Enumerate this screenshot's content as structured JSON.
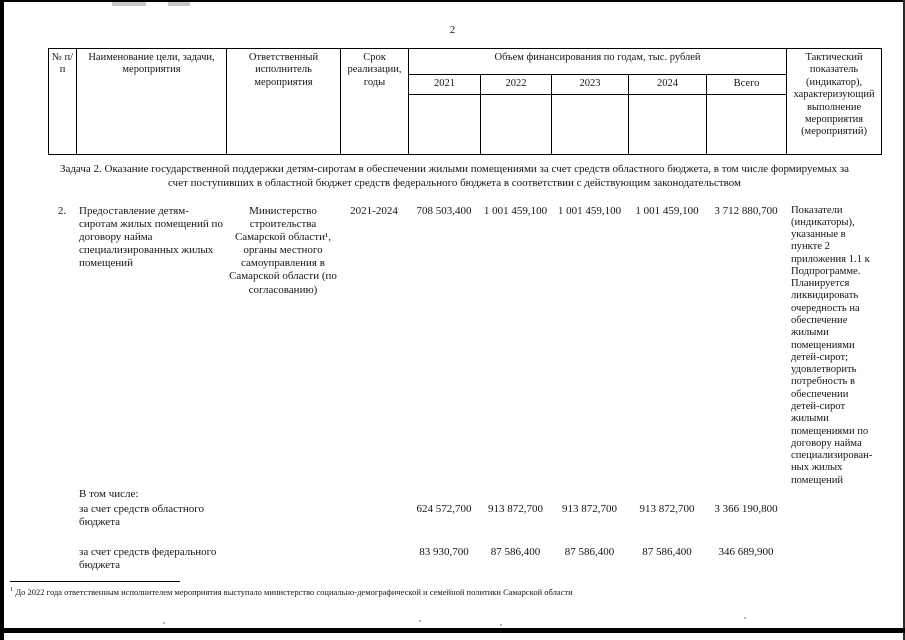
{
  "page": {
    "number": "2"
  },
  "table": {
    "header": {
      "num": "№ п/п",
      "name": "Наименование цели, задачи, мероприятия",
      "executor": "Ответственный исполнитель мероприятия",
      "term": "Срок реализации, годы",
      "financing": "Объем финансирования по годам, тыс. рублей",
      "years": [
        "2021",
        "2022",
        "2023",
        "2024",
        "Всего"
      ],
      "indicator": "Тактический показатель (индикатор), характеризующий выполнение мероприятия (мероприятий)"
    },
    "task_heading": "Задача 2. Оказание государственной поддержки детям-сиротам в обеспечении жилыми помещениями за счет средств областного бюджета, в том числе формируемых за счет поступивших в областной бюджет средств федерального бюджета в соответствии с действующим законодательством",
    "main_row": {
      "num": "2.",
      "name": "Предоставление детям-сиротам жилых помещений по договору найма специализированных жилых помещений",
      "executor": "Министерство строительства Самарской области¹, органы местного самоуправления в Самарской области (по согласованию)",
      "term": "2021-2024",
      "values": [
        "708 503,400",
        "1 001 459,100",
        "1 001 459,100",
        "1 001 459,100",
        "3 712 880,700"
      ],
      "indicator": "Показатели (индикаторы), указанные в пункте 2 приложения 1.1 к Подпрограмме. Планируется ликвидировать очередность на обеспечение жилыми помещениями детей-сирот; удовлетворить потребность в обеспечении детей-сирот жилыми помещениями по договору найма специализирован-ных жилых помещений"
    },
    "breakdown": {
      "intro": "В том числе:",
      "rows": [
        {
          "label": "за счет средств областного бюджета",
          "values": [
            "624 572,700",
            "913 872,700",
            "913 872,700",
            "913 872,700",
            "3 366 190,800"
          ]
        },
        {
          "label": "за счет средств федерального бюджета",
          "values": [
            "83 930,700",
            "87 586,400",
            "87 586,400",
            "87 586,400",
            "346 689,900"
          ]
        }
      ]
    }
  },
  "footnote": {
    "marker": "1",
    "text": "До 2022 года ответственным исполнителем мероприятия выступало министерство социально-демографической и семейной политики Самарской области"
  }
}
